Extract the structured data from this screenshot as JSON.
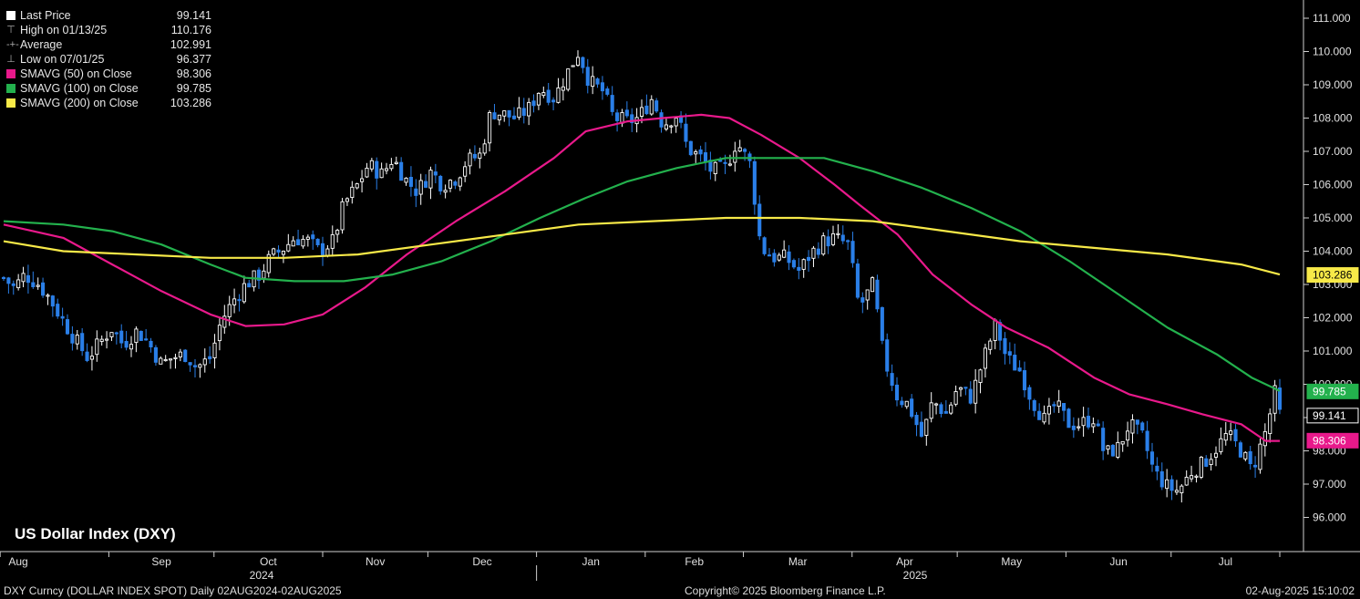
{
  "legend": {
    "last_price": {
      "label": "Last Price",
      "value": "99.141",
      "color": "#ffffff"
    },
    "high": {
      "label": "High on 01/13/25",
      "value": "110.176"
    },
    "average": {
      "label": "Average",
      "value": "102.991"
    },
    "low": {
      "label": "Low on 07/01/25",
      "value": "96.377"
    },
    "sma50": {
      "label": "SMAVG (50)  on Close",
      "value": "98.306",
      "color": "#e8198b"
    },
    "sma100": {
      "label": "SMAVG (100)  on Close",
      "value": "99.785",
      "color": "#23b14d"
    },
    "sma200": {
      "label": "SMAVG (200)  on Close",
      "value": "103.286",
      "color": "#f7e948"
    }
  },
  "title": "US Dollar Index (DXY)",
  "footer": {
    "left": "DXY Curncy (DOLLAR INDEX SPOT)  Daily 02AUG2024-02AUG2025",
    "center": "Copyright© 2025 Bloomberg Finance L.P.",
    "right": "02-Aug-2025 15:10:02"
  },
  "chart_data": {
    "type": "candlestick",
    "title": "US Dollar Index (DXY)",
    "ylim": [
      95.0,
      111.5
    ],
    "y_ticks": [
      "96.000",
      "97.000",
      "98.000",
      "99.000",
      "100.000",
      "101.000",
      "102.000",
      "103.000",
      "104.000",
      "105.000",
      "106.000",
      "107.000",
      "108.000",
      "109.000",
      "110.000",
      "111.000"
    ],
    "x_months": [
      "Aug",
      "Sep",
      "Oct",
      "Nov",
      "Dec",
      "Jan",
      "Feb",
      "Mar",
      "Apr",
      "May",
      "Jun",
      "Jul"
    ],
    "x_years": [
      "2024",
      "2025"
    ],
    "price_path": [
      [
        "2024-08-02",
        103.2
      ],
      [
        "2024-08-05",
        102.9
      ],
      [
        "2024-08-08",
        103.3
      ],
      [
        "2024-08-12",
        103.0
      ],
      [
        "2024-08-15",
        102.6
      ],
      [
        "2024-08-19",
        101.9
      ],
      [
        "2024-08-22",
        101.4
      ],
      [
        "2024-08-26",
        100.8
      ],
      [
        "2024-08-29",
        101.2
      ],
      [
        "2024-09-02",
        101.7
      ],
      [
        "2024-09-05",
        101.2
      ],
      [
        "2024-09-09",
        101.6
      ],
      [
        "2024-09-12",
        101.3
      ],
      [
        "2024-09-16",
        100.6
      ],
      [
        "2024-09-19",
        100.8
      ],
      [
        "2024-09-23",
        100.9
      ],
      [
        "2024-09-26",
        100.5
      ],
      [
        "2024-09-30",
        100.8
      ],
      [
        "2024-10-03",
        101.9
      ],
      [
        "2024-10-07",
        102.6
      ],
      [
        "2024-10-10",
        103.0
      ],
      [
        "2024-10-14",
        103.3
      ],
      [
        "2024-10-17",
        103.8
      ],
      [
        "2024-10-21",
        104.1
      ],
      [
        "2024-10-24",
        104.4
      ],
      [
        "2024-10-28",
        104.3
      ],
      [
        "2024-10-31",
        104.0
      ],
      [
        "2024-11-04",
        104.3
      ],
      [
        "2024-11-07",
        105.4
      ],
      [
        "2024-11-11",
        106.0
      ],
      [
        "2024-11-14",
        106.6
      ],
      [
        "2024-11-18",
        106.3
      ],
      [
        "2024-11-21",
        106.8
      ],
      [
        "2024-11-25",
        106.1
      ],
      [
        "2024-11-28",
        105.8
      ],
      [
        "2024-12-02",
        106.4
      ],
      [
        "2024-12-05",
        106.0
      ],
      [
        "2024-12-09",
        106.2
      ],
      [
        "2024-12-12",
        106.7
      ],
      [
        "2024-12-16",
        106.9
      ],
      [
        "2024-12-19",
        108.2
      ],
      [
        "2024-12-23",
        108.1
      ],
      [
        "2024-12-26",
        108.0
      ],
      [
        "2024-12-30",
        108.3
      ],
      [
        "2025-01-02",
        108.9
      ],
      [
        "2025-01-06",
        108.6
      ],
      [
        "2025-01-09",
        109.2
      ],
      [
        "2025-01-13",
        110.0
      ],
      [
        "2025-01-16",
        109.1
      ],
      [
        "2025-01-20",
        108.8
      ],
      [
        "2025-01-23",
        108.0
      ],
      [
        "2025-01-27",
        107.9
      ],
      [
        "2025-01-30",
        108.0
      ],
      [
        "2025-02-03",
        108.6
      ],
      [
        "2025-02-06",
        107.8
      ],
      [
        "2025-02-10",
        108.1
      ],
      [
        "2025-02-13",
        107.1
      ],
      [
        "2025-02-17",
        106.8
      ],
      [
        "2025-02-20",
        106.4
      ],
      [
        "2025-02-24",
        106.5
      ],
      [
        "2025-02-27",
        107.3
      ],
      [
        "2025-03-03",
        106.6
      ],
      [
        "2025-03-06",
        104.1
      ],
      [
        "2025-03-10",
        103.8
      ],
      [
        "2025-03-13",
        103.8
      ],
      [
        "2025-03-17",
        103.4
      ],
      [
        "2025-03-20",
        103.9
      ],
      [
        "2025-03-24",
        104.3
      ],
      [
        "2025-03-27",
        104.4
      ],
      [
        "2025-03-31",
        104.2
      ],
      [
        "2025-04-03",
        102.3
      ],
      [
        "2025-04-07",
        103.0
      ],
      [
        "2025-04-10",
        100.8
      ],
      [
        "2025-04-14",
        99.6
      ],
      [
        "2025-04-17",
        99.4
      ],
      [
        "2025-04-21",
        98.4
      ],
      [
        "2025-04-24",
        99.5
      ],
      [
        "2025-04-28",
        99.1
      ],
      [
        "2025-05-01",
        99.9
      ],
      [
        "2025-05-05",
        99.6
      ],
      [
        "2025-05-08",
        100.6
      ],
      [
        "2025-05-12",
        101.8
      ],
      [
        "2025-05-15",
        100.8
      ],
      [
        "2025-05-19",
        100.4
      ],
      [
        "2025-05-22",
        99.6
      ],
      [
        "2025-05-26",
        98.9
      ],
      [
        "2025-05-29",
        99.4
      ],
      [
        "2025-06-02",
        98.8
      ],
      [
        "2025-06-05",
        98.8
      ],
      [
        "2025-06-09",
        99.0
      ],
      [
        "2025-06-12",
        97.9
      ],
      [
        "2025-06-16",
        98.1
      ],
      [
        "2025-06-19",
        98.8
      ],
      [
        "2025-06-23",
        98.4
      ],
      [
        "2025-06-26",
        97.4
      ],
      [
        "2025-06-30",
        96.9
      ],
      [
        "2025-07-03",
        96.8
      ],
      [
        "2025-07-07",
        97.4
      ],
      [
        "2025-07-10",
        97.6
      ],
      [
        "2025-07-14",
        98.1
      ],
      [
        "2025-07-17",
        98.5
      ],
      [
        "2025-07-21",
        98.0
      ],
      [
        "2025-07-24",
        97.4
      ],
      [
        "2025-07-28",
        98.6
      ],
      [
        "2025-07-31",
        99.9
      ],
      [
        "2025-08-01",
        99.1
      ]
    ],
    "series": [
      {
        "name": "SMAVG (50)  on Close",
        "color": "#e8198b",
        "points": [
          [
            "2024-08-02",
            104.8
          ],
          [
            "2024-08-19",
            104.4
          ],
          [
            "2024-09-02",
            103.6
          ],
          [
            "2024-09-16",
            102.8
          ],
          [
            "2024-09-30",
            102.1
          ],
          [
            "2024-10-10",
            101.75
          ],
          [
            "2024-10-21",
            101.8
          ],
          [
            "2024-11-01",
            102.1
          ],
          [
            "2024-11-13",
            102.9
          ],
          [
            "2024-11-25",
            103.9
          ],
          [
            "2024-12-09",
            104.9
          ],
          [
            "2024-12-23",
            105.8
          ],
          [
            "2025-01-06",
            106.8
          ],
          [
            "2025-01-15",
            107.6
          ],
          [
            "2025-01-27",
            107.9
          ],
          [
            "2025-02-06",
            108.0
          ],
          [
            "2025-02-17",
            108.1
          ],
          [
            "2025-02-25",
            108.0
          ],
          [
            "2025-03-06",
            107.5
          ],
          [
            "2025-03-17",
            106.8
          ],
          [
            "2025-03-27",
            106.0
          ],
          [
            "2025-04-03",
            105.4
          ],
          [
            "2025-04-14",
            104.5
          ],
          [
            "2025-04-24",
            103.3
          ],
          [
            "2025-05-05",
            102.4
          ],
          [
            "2025-05-15",
            101.7
          ],
          [
            "2025-05-27",
            101.1
          ],
          [
            "2025-06-09",
            100.2
          ],
          [
            "2025-06-19",
            99.7
          ],
          [
            "2025-06-30",
            99.4
          ],
          [
            "2025-07-10",
            99.1
          ],
          [
            "2025-07-21",
            98.8
          ],
          [
            "2025-07-28",
            98.3
          ],
          [
            "2025-08-01",
            98.3
          ]
        ]
      },
      {
        "name": "SMAVG (100)  on Close",
        "color": "#23b14d",
        "points": [
          [
            "2024-08-02",
            104.9
          ],
          [
            "2024-08-19",
            104.8
          ],
          [
            "2024-09-02",
            104.6
          ],
          [
            "2024-09-16",
            104.2
          ],
          [
            "2024-09-30",
            103.6
          ],
          [
            "2024-10-10",
            103.2
          ],
          [
            "2024-10-24",
            103.1
          ],
          [
            "2024-11-07",
            103.1
          ],
          [
            "2024-11-21",
            103.3
          ],
          [
            "2024-12-05",
            103.7
          ],
          [
            "2024-12-19",
            104.3
          ],
          [
            "2025-01-02",
            105.0
          ],
          [
            "2025-01-15",
            105.6
          ],
          [
            "2025-01-27",
            106.1
          ],
          [
            "2025-02-10",
            106.5
          ],
          [
            "2025-02-24",
            106.8
          ],
          [
            "2025-03-10",
            106.8
          ],
          [
            "2025-03-24",
            106.8
          ],
          [
            "2025-04-07",
            106.4
          ],
          [
            "2025-04-21",
            105.9
          ],
          [
            "2025-05-05",
            105.3
          ],
          [
            "2025-05-19",
            104.6
          ],
          [
            "2025-06-02",
            103.7
          ],
          [
            "2025-06-16",
            102.7
          ],
          [
            "2025-06-30",
            101.7
          ],
          [
            "2025-07-14",
            100.9
          ],
          [
            "2025-07-24",
            100.2
          ],
          [
            "2025-08-01",
            99.8
          ]
        ]
      },
      {
        "name": "SMAVG (200)  on Close",
        "color": "#f7e948",
        "points": [
          [
            "2024-08-02",
            104.3
          ],
          [
            "2024-08-19",
            104.0
          ],
          [
            "2024-09-09",
            103.9
          ],
          [
            "2024-09-30",
            103.8
          ],
          [
            "2024-10-21",
            103.8
          ],
          [
            "2024-11-11",
            103.9
          ],
          [
            "2024-12-02",
            104.2
          ],
          [
            "2024-12-23",
            104.5
          ],
          [
            "2025-01-13",
            104.8
          ],
          [
            "2025-02-03",
            104.9
          ],
          [
            "2025-02-24",
            105.0
          ],
          [
            "2025-03-17",
            105.0
          ],
          [
            "2025-04-07",
            104.9
          ],
          [
            "2025-04-28",
            104.6
          ],
          [
            "2025-05-19",
            104.3
          ],
          [
            "2025-06-09",
            104.1
          ],
          [
            "2025-06-30",
            103.9
          ],
          [
            "2025-07-21",
            103.6
          ],
          [
            "2025-08-01",
            103.3
          ]
        ]
      }
    ],
    "grid": false,
    "legend_position": "top-left"
  },
  "colors": {
    "up": "#ffffff",
    "down": "#2a7fe8",
    "axis": "#cfcfcf",
    "background": "#000000"
  }
}
